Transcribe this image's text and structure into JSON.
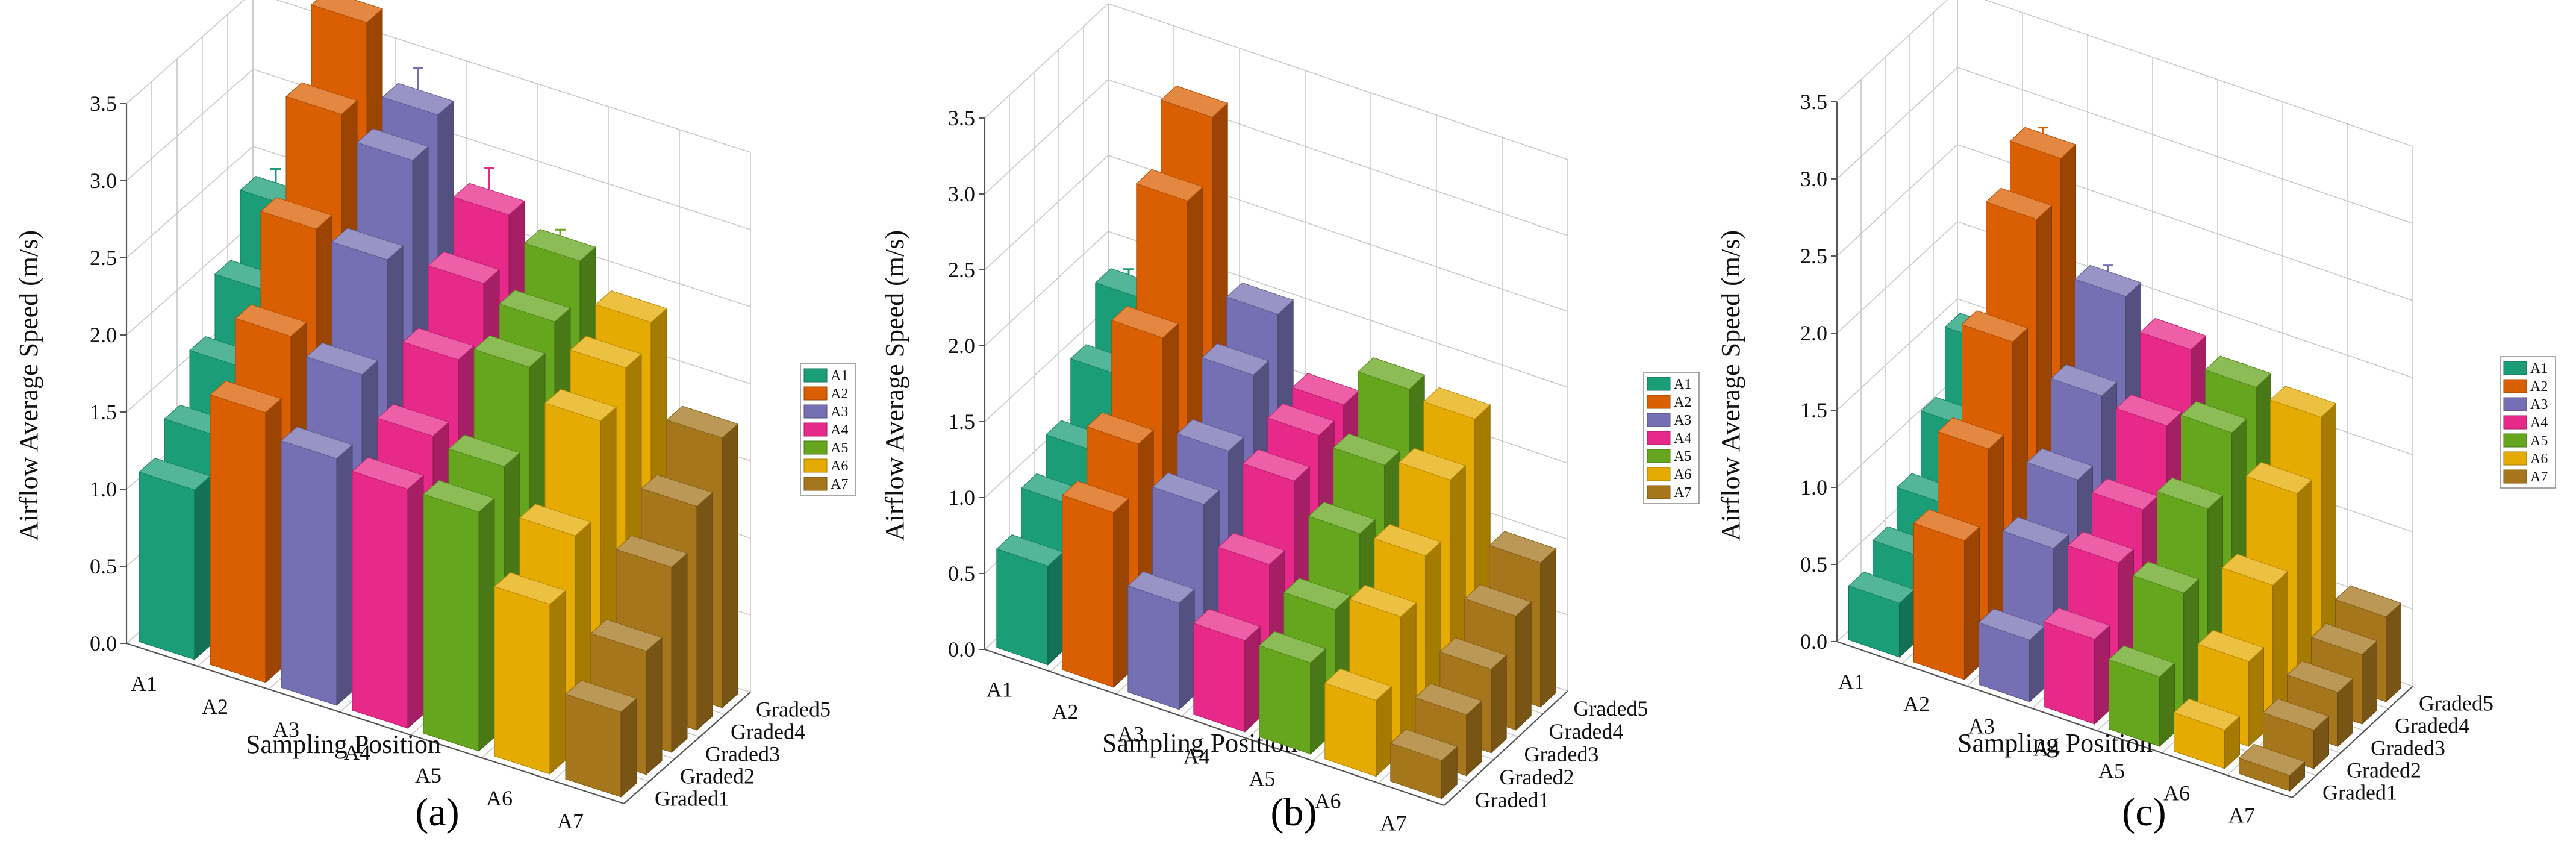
{
  "figure": {
    "panel_labels": [
      "(a)",
      "(b)",
      "(c)"
    ]
  },
  "chart_data": [
    {
      "type": "bar3d",
      "panel": "(a)",
      "ylabel": "Airflow Average Speed (m/s)",
      "xlabel": "Sampling Position",
      "zlabel": "",
      "zlim": [
        0,
        3.5
      ],
      "z_ticks": [
        "0.0",
        "0.5",
        "1.0",
        "1.5",
        "2.0",
        "2.5",
        "3.0",
        "3.5"
      ],
      "x_categories": [
        "A1",
        "A2",
        "A3",
        "A4",
        "A5",
        "A6",
        "A7"
      ],
      "y_categories": [
        "Graded1",
        "Graded2",
        "Graded3",
        "Graded4",
        "Graded5"
      ],
      "legend": [
        "A1",
        "A2",
        "A3",
        "A4",
        "A5",
        "A6",
        "A7"
      ],
      "colors": [
        "#1b9e77",
        "#d95f02",
        "#7570b3",
        "#e7298a",
        "#66a61e",
        "#e6ab02",
        "#a6761d"
      ],
      "grid": true,
      "values": [
        [
          1.1,
          1.3,
          1.6,
          1.95,
          2.35
        ],
        [
          1.75,
          2.1,
          2.65,
          3.25,
          3.7
        ],
        [
          1.6,
          2.0,
          2.6,
          3.1,
          3.25
        ],
        [
          1.55,
          1.75,
          2.1,
          2.45,
          2.75
        ],
        [
          1.55,
          1.7,
          2.2,
          2.35,
          2.6
        ],
        [
          1.1,
          1.4,
          2.0,
          2.2,
          2.35
        ],
        [
          0.55,
          0.8,
          1.2,
          1.45,
          1.75
        ]
      ],
      "errors": [
        [
          0.25,
          0.15,
          0.3,
          0.2,
          0.15
        ],
        [
          0.05,
          0.25,
          0.25,
          0.1,
          0.15
        ],
        [
          0.05,
          0.1,
          0.25,
          0.15,
          0.2
        ],
        [
          0.1,
          0.15,
          0.1,
          0.15,
          0.2
        ],
        [
          0.1,
          0.1,
          0.1,
          0.15,
          0.1
        ],
        [
          0.05,
          0.05,
          0.05,
          0.05,
          0.05
        ],
        [
          0.05,
          0.05,
          0.05,
          0.05,
          0.05
        ]
      ]
    },
    {
      "type": "bar3d",
      "panel": "(b)",
      "ylabel": "Airflow Average Speed (m/s)",
      "xlabel": "Sampling Position",
      "zlabel": "",
      "zlim": [
        0,
        3.5
      ],
      "z_ticks": [
        "0.0",
        "0.5",
        "1.0",
        "1.5",
        "2.0",
        "2.5",
        "3.0",
        "3.5"
      ],
      "x_categories": [
        "A1",
        "A2",
        "A3",
        "A4",
        "A5",
        "A6",
        "A7"
      ],
      "y_categories": [
        "Graded1",
        "Graded2",
        "Graded3",
        "Graded4",
        "Graded5"
      ],
      "legend": [
        "A1",
        "A2",
        "A3",
        "A4",
        "A5",
        "A6",
        "A7"
      ],
      "colors": [
        "#1b9e77",
        "#d95f02",
        "#7570b3",
        "#e7298a",
        "#66a61e",
        "#e6ab02",
        "#a6761d"
      ],
      "grid": true,
      "values": [
        [
          0.65,
          0.9,
          1.1,
          1.45,
          1.8
        ],
        [
          1.15,
          1.45,
          2.0,
          2.75,
          3.15
        ],
        [
          0.7,
          1.2,
          1.4,
          1.75,
          2.0
        ],
        [
          0.6,
          0.95,
          1.35,
          1.5,
          1.55
        ],
        [
          0.6,
          0.8,
          1.15,
          1.45,
          1.8
        ],
        [
          0.5,
          0.9,
          1.15,
          1.5,
          1.75
        ],
        [
          0.25,
          0.4,
          0.55,
          0.75,
          0.95
        ]
      ],
      "errors": [
        [
          0.1,
          0.05,
          0.1,
          0.1,
          0.1
        ],
        [
          0.05,
          0.05,
          0.1,
          0.1,
          0.05
        ],
        [
          0.1,
          0.05,
          0.05,
          0.05,
          0.05
        ],
        [
          0.05,
          0.05,
          0.05,
          0.05,
          0.05
        ],
        [
          0.05,
          0.05,
          0.05,
          0.05,
          0.05
        ],
        [
          0.05,
          0.05,
          0.05,
          0.05,
          0.05
        ],
        [
          0.05,
          0.05,
          0.05,
          0.05,
          0.05
        ]
      ]
    },
    {
      "type": "bar3d",
      "panel": "(c)",
      "ylabel": "Airflow Average Speed (m/s)",
      "xlabel": "Sampling Position",
      "zlabel": "",
      "zlim": [
        0,
        3.5
      ],
      "z_ticks": [
        "0.0",
        "0.5",
        "1.0",
        "1.5",
        "2.0",
        "2.5",
        "3.0",
        "3.5"
      ],
      "x_categories": [
        "A1",
        "A2",
        "A3",
        "A4",
        "A5",
        "A6",
        "A7"
      ],
      "y_categories": [
        "Graded1",
        "Graded2",
        "Graded3",
        "Graded4",
        "Graded5"
      ],
      "legend": [
        "A1",
        "A2",
        "A3",
        "A4",
        "A5",
        "A6",
        "A7"
      ],
      "colors": [
        "#1b9e77",
        "#d95f02",
        "#7570b3",
        "#e7298a",
        "#66a61e",
        "#e6ab02",
        "#a6761d"
      ],
      "grid": true,
      "values": [
        [
          0.35,
          0.5,
          0.7,
          1.05,
          1.45
        ],
        [
          0.9,
          1.35,
          1.9,
          2.55,
          2.8
        ],
        [
          0.4,
          0.85,
          1.15,
          1.55,
          2.05
        ],
        [
          0.55,
          0.9,
          1.1,
          1.5,
          1.85
        ],
        [
          0.45,
          0.85,
          1.25,
          1.6,
          1.75
        ],
        [
          0.25,
          0.55,
          0.9,
          1.35,
          1.7
        ],
        [
          0.1,
          0.25,
          0.35,
          0.45,
          0.55
        ]
      ],
      "errors": [
        [
          0.05,
          0.05,
          0.05,
          0.05,
          0.05
        ],
        [
          0.05,
          0.05,
          0.05,
          0.1,
          0.1
        ],
        [
          0.05,
          0.05,
          0.05,
          0.05,
          0.1
        ],
        [
          0.05,
          0.05,
          0.05,
          0.05,
          0.05
        ],
        [
          0.05,
          0.05,
          0.05,
          0.05,
          0.05
        ],
        [
          0.05,
          0.05,
          0.05,
          0.05,
          0.05
        ],
        [
          0.05,
          0.05,
          0.05,
          0.05,
          0.05
        ]
      ]
    }
  ]
}
